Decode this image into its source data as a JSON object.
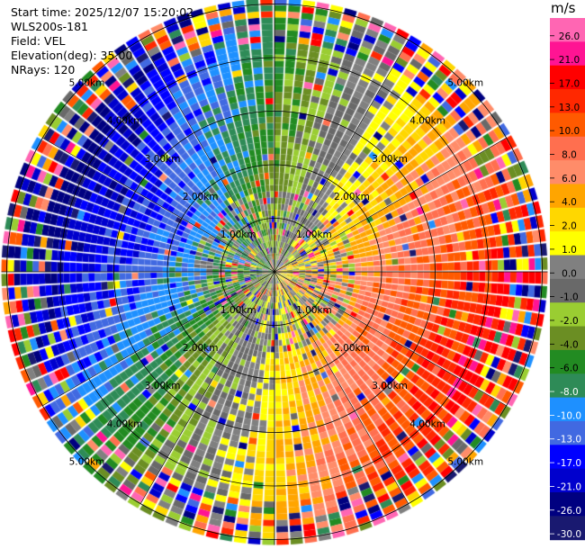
{
  "meta": {
    "start_time": "Start time: 2025/12/07 15:20:02",
    "instrument": "WLS200s-181",
    "field": "Field: VEL",
    "elevation": "Elevation(deg): 35.00",
    "nrays": "NRays: 120"
  },
  "colorbar": {
    "unit": "m/s",
    "ticks": [
      "26.0",
      "21.0",
      "17.0",
      "13.0",
      "10.0",
      "8.0",
      "6.0",
      "4.0",
      "2.0",
      "1.0",
      "0.0",
      "-1.0",
      "-2.0",
      "-4.0",
      "-6.0",
      "-8.0",
      "-10.0",
      "-13.0",
      "-17.0",
      "-21.0",
      "-26.0",
      "-30.0"
    ],
    "colors": [
      "#ff66b3",
      "#ff1493",
      "#ff0000",
      "#ff2800",
      "#ff5a00",
      "#ff6f4f",
      "#ff8c69",
      "#ffa500",
      "#ffd700",
      "#ffff00",
      "#808080",
      "#696969",
      "#9acd32",
      "#6b8e23",
      "#228b22",
      "#2e8b57",
      "#1e90ff",
      "#4169e1",
      "#0000ff",
      "#0000cd",
      "#000080",
      "#191970"
    ]
  },
  "chart_data": {
    "type": "heatmap",
    "projection": "PPI polar",
    "range_rings_km": [
      1,
      2,
      3,
      4,
      5
    ],
    "range_ring_labels": [
      "1.00km",
      "2.00km",
      "3.00km",
      "4.00km",
      "5.00km"
    ],
    "n_rays": 120,
    "max_range_km": 5.1,
    "field": "VEL",
    "units": "m/s",
    "vmin": -30.0,
    "vmax": 26.0,
    "pattern": "negative (toward) velocities west/northwest, positive (away) velocities east/southeast, noisy speckle near center and at far range"
  }
}
